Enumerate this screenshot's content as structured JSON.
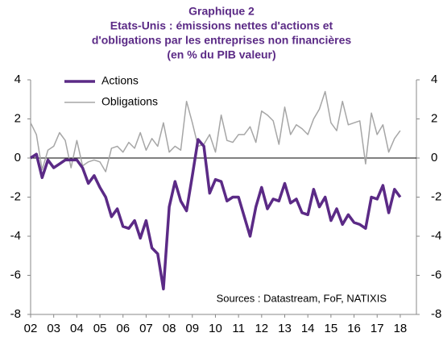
{
  "chart_data": {
    "type": "line",
    "title": [
      "Graphique 2",
      "Etats-Unis : émissions nettes d'actions et",
      "d'obligations par les entreprises non financières",
      "(en % du PIB valeur)"
    ],
    "annotation": "Sources : Datastream, FoF, NATIXIS",
    "x": [
      2002,
      2002.25,
      2002.5,
      2002.75,
      2003,
      2003.25,
      2003.5,
      2003.75,
      2004,
      2004.25,
      2004.5,
      2004.75,
      2005,
      2005.25,
      2005.5,
      2005.75,
      2006,
      2006.25,
      2006.5,
      2006.75,
      2007,
      2007.25,
      2007.5,
      2007.75,
      2008,
      2008.25,
      2008.5,
      2008.75,
      2009,
      2009.25,
      2009.5,
      2009.75,
      2010,
      2010.25,
      2010.5,
      2010.75,
      2011,
      2011.25,
      2011.5,
      2011.75,
      2012,
      2012.25,
      2012.5,
      2012.75,
      2013,
      2013.25,
      2013.5,
      2013.75,
      2014,
      2014.25,
      2014.5,
      2014.75,
      2015,
      2015.25,
      2015.5,
      2015.75,
      2016,
      2016.25,
      2016.5,
      2016.75,
      2017,
      2017.25,
      2017.5,
      2017.75,
      2018
    ],
    "series": [
      {
        "name": "Actions",
        "color": "#5b2a86",
        "values": [
          0,
          0.2,
          -1.0,
          -0.1,
          -0.5,
          -0.3,
          -0.1,
          -0.1,
          -0.1,
          -0.5,
          -1.3,
          -0.9,
          -1.5,
          -2.0,
          -3.0,
          -2.6,
          -3.5,
          -3.6,
          -3.2,
          -4.1,
          -3.2,
          -4.6,
          -4.9,
          -6.7,
          -2.5,
          -1.2,
          -2.2,
          -2.7,
          -0.9,
          0.95,
          0.6,
          -1.8,
          -1.1,
          -1.2,
          -2.2,
          -2.0,
          -2.0,
          -3.0,
          -4.0,
          -2.5,
          -1.5,
          -2.6,
          -2.1,
          -2.2,
          -1.3,
          -2.3,
          -2.1,
          -2.8,
          -2.9,
          -1.6,
          -2.5,
          -2.0,
          -3.2,
          -2.6,
          -3.4,
          -2.9,
          -3.3,
          -3.4,
          -3.6,
          -2.0,
          -2.1,
          -1.4,
          -2.8,
          -1.6,
          -2.0
        ]
      },
      {
        "name": "Obligations",
        "color": "#a6a6a6",
        "values": [
          1.8,
          1.2,
          -0.6,
          0.4,
          0.6,
          1.3,
          0.9,
          -0.5,
          0.9,
          -0.4,
          -0.2,
          -0.1,
          -0.2,
          -0.7,
          0.5,
          0.6,
          0.3,
          0.8,
          0.5,
          1.3,
          0.4,
          1.0,
          0.6,
          1.8,
          0.3,
          0.6,
          0.4,
          2.9,
          1.8,
          0.6,
          0.7,
          1.2,
          0.3,
          2.2,
          0.9,
          0.8,
          1.2,
          1.2,
          1.6,
          0.8,
          2.4,
          2.2,
          1.9,
          0.7,
          2.6,
          1.2,
          1.7,
          1.5,
          1.2,
          2.0,
          2.5,
          3.4,
          1.8,
          1.4,
          2.9,
          1.7,
          1.8,
          1.9,
          -0.3,
          2.3,
          1.2,
          1.7,
          0.3,
          1.0,
          1.4
        ]
      }
    ],
    "xlim": [
      2002,
      2018.7
    ],
    "xticks": [
      {
        "value": 2002,
        "label": "02"
      },
      {
        "value": 2003,
        "label": "03"
      },
      {
        "value": 2004,
        "label": "04"
      },
      {
        "value": 2005,
        "label": "05"
      },
      {
        "value": 2006,
        "label": "06"
      },
      {
        "value": 2007,
        "label": "07"
      },
      {
        "value": 2008,
        "label": "08"
      },
      {
        "value": 2009,
        "label": "09"
      },
      {
        "value": 2010,
        "label": "10"
      },
      {
        "value": 2011,
        "label": "11"
      },
      {
        "value": 2012,
        "label": "12"
      },
      {
        "value": 2013,
        "label": "13"
      },
      {
        "value": 2014,
        "label": "14"
      },
      {
        "value": 2015,
        "label": "15"
      },
      {
        "value": 2016,
        "label": "16"
      },
      {
        "value": 2017,
        "label": "17"
      },
      {
        "value": 2018,
        "label": "18"
      }
    ],
    "ylim": [
      -8,
      4
    ],
    "yticks": [
      -8,
      -6,
      -4,
      -2,
      0,
      2,
      4
    ],
    "y2lim": [
      -8,
      4
    ],
    "y2ticks": [
      -8,
      -6,
      -4,
      -2,
      0,
      2,
      4
    ],
    "legend": "upper left"
  }
}
